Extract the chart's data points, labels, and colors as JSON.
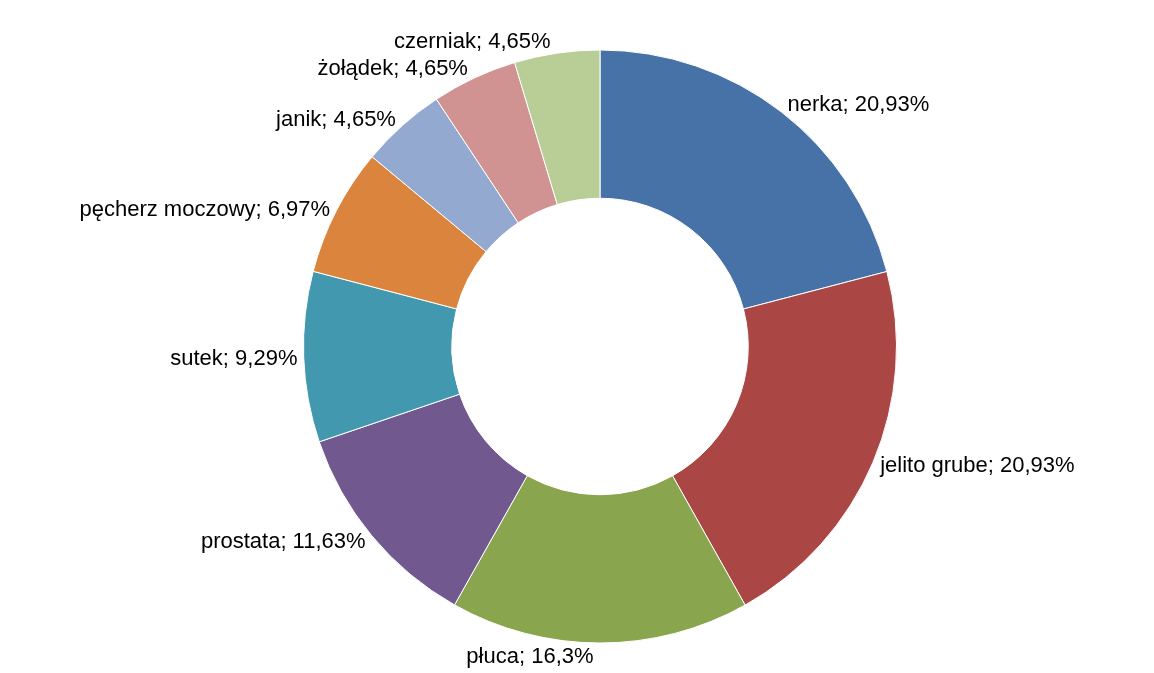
{
  "chart_data": {
    "type": "donut",
    "categories": [
      "nerka",
      "jelito grube",
      "płuca",
      "prostata",
      "sutek",
      "pęcherz moczowy",
      "janik",
      "żołądek",
      "czerniak"
    ],
    "values": [
      20.93,
      20.93,
      16.3,
      11.63,
      9.29,
      6.97,
      4.65,
      4.65,
      4.65
    ],
    "value_labels": [
      "20,93%",
      "20,93%",
      "16,3%",
      "11,63%",
      "9,29%",
      "6,97%",
      "4,65%",
      "4,65%",
      "4,65%"
    ],
    "colors": [
      "#4672a8",
      "#aa4644",
      "#89a54e",
      "#71588f",
      "#4198af",
      "#db843d",
      "#93a9d0",
      "#d09392",
      "#b9cd96"
    ],
    "legend": false
  }
}
